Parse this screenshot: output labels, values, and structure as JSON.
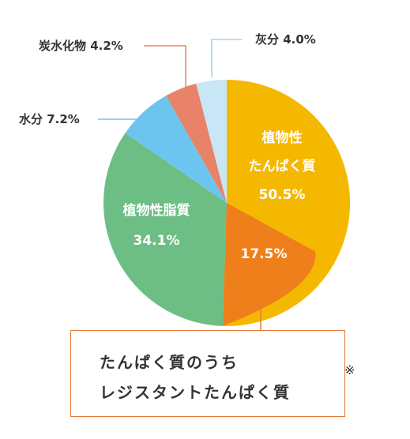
{
  "chart_data": {
    "type": "pie",
    "title": "",
    "slices": [
      {
        "name": "植物性たんぱく質",
        "value": 50.5,
        "label_lines": [
          "植物性",
          "たんぱく質",
          "50.5%"
        ],
        "color": "#f5b800"
      },
      {
        "name": "植物性脂質",
        "value": 34.1,
        "label_lines": [
          "植物性脂質",
          "34.1%"
        ],
        "color": "#6dbe85"
      },
      {
        "name": "水分",
        "value": 7.2,
        "label": "水分 7.2%",
        "color": "#6cc5ee"
      },
      {
        "name": "炭水化物",
        "value": 4.2,
        "label": "炭水化物 4.2%",
        "color": "#e8836a"
      },
      {
        "name": "灰分",
        "value": 4.0,
        "label": "灰分 4.0%",
        "color": "#c8e6f6"
      }
    ],
    "sub_slice": {
      "name": "たんぱく質のうちレジスタントたんぱく質",
      "value": 17.5,
      "label": "17.5%",
      "color": "#ef7f1a"
    }
  },
  "callout": {
    "line1": "たんぱく質のうち",
    "line2": "レジスタントたんぱく質",
    "mark": "※"
  },
  "colors": {
    "leader_lines": "#6cc5ee",
    "leader_carb": "#e8836a",
    "callout_border": "#e07a3a"
  }
}
